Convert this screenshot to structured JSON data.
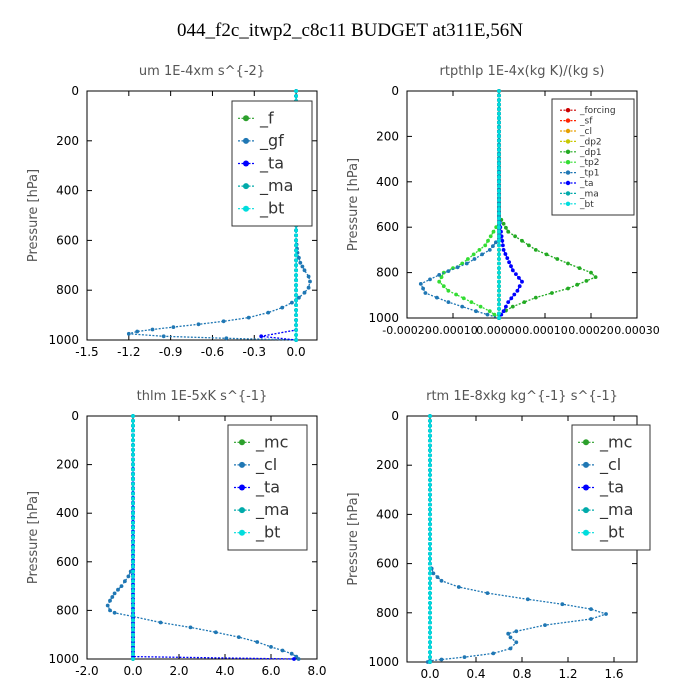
{
  "title": "044_f2c_itwp2_c8c11  BUDGET at311E,56N",
  "chart_data": [
    {
      "type": "line",
      "title": "um   1E-4xm s^{-2}",
      "ylabel": "Pressure [hPa]",
      "xlim": [
        -1.5,
        0.15
      ],
      "ylim": [
        1000,
        0
      ],
      "xticks": [
        "-1.5",
        "-1.2",
        "-0.9",
        "-0.6",
        "-0.3",
        "0.0"
      ],
      "xtick_values": [
        -1.5,
        -1.2,
        -0.9,
        -0.6,
        -0.3,
        0.0
      ],
      "yticks": [
        "0",
        "200",
        "400",
        "600",
        "800",
        "1000"
      ],
      "ytick_values": [
        0,
        200,
        400,
        600,
        800,
        1000
      ],
      "legend": [
        "_f",
        "_gf",
        "_ta",
        "_ma",
        "_bt"
      ],
      "legend_position": "top-right",
      "legend_small": false,
      "series": [
        {
          "name": "_f",
          "color": "#2ca02c",
          "x": [
            0.0,
            0.0
          ],
          "y": [
            0,
            1000
          ]
        },
        {
          "name": "_gf",
          "color": "#1f77b4",
          "x": [
            0.0,
            0.0,
            0.01,
            0.03,
            0.06,
            0.09,
            0.1,
            0.09,
            0.06,
            0.02,
            -0.03,
            -0.1,
            -0.2,
            -0.34,
            -0.52,
            -0.7,
            -0.88,
            -1.03,
            -1.14,
            -1.2,
            -0.95,
            -0.5,
            0.0
          ],
          "y": [
            0,
            600,
            650,
            690,
            720,
            745,
            765,
            790,
            810,
            830,
            850,
            870,
            890,
            910,
            925,
            937,
            948,
            958,
            966,
            975,
            985,
            993,
            1000
          ]
        },
        {
          "name": "_ta",
          "color": "#0000ff",
          "x": [
            0.0,
            0.0,
            -0.25,
            0.0
          ],
          "y": [
            0,
            960,
            985,
            1000
          ]
        },
        {
          "name": "_ma",
          "color": "#00aaaa",
          "x": [
            0.0,
            0.0
          ],
          "y": [
            0,
            1000
          ]
        },
        {
          "name": "_bt",
          "color": "#00dddd",
          "x": [
            0.0,
            0.0
          ],
          "y": [
            0,
            1000
          ]
        }
      ]
    },
    {
      "type": "line",
      "title": "rtpthlp   1E-4x(kg K)/(kg s)",
      "ylabel": "Pressure [hPa]",
      "xlim": [
        -0.0002,
        0.0003
      ],
      "ylim": [
        1000,
        0
      ],
      "xticks": [
        "-0.00020",
        "-0.00010",
        "0.00000",
        "0.00010",
        "0.00020",
        "0.00030"
      ],
      "xtick_values": [
        -0.0002,
        -0.0001,
        0.0,
        0.0001,
        0.0002,
        0.0003
      ],
      "yticks": [
        "0",
        "200",
        "400",
        "600",
        "800",
        "1000"
      ],
      "ytick_values": [
        0,
        200,
        400,
        600,
        800,
        1000
      ],
      "legend": [
        "_forcing",
        "_sf",
        "_cl",
        "_dp2",
        "_dp1",
        "_tp2",
        "_tp1",
        "_ta",
        "_ma",
        "_bt"
      ],
      "legend_position": "top-right",
      "legend_small": true,
      "series": [
        {
          "name": "_forcing",
          "color": "#cc0000",
          "x": [
            0.0,
            0.0
          ],
          "y": [
            0,
            1000
          ]
        },
        {
          "name": "_sf",
          "color": "#ff2200",
          "x": [
            0.0,
            0.0
          ],
          "y": [
            0,
            1000
          ]
        },
        {
          "name": "_cl",
          "color": "#e6a000",
          "x": [
            0.0,
            0.0
          ],
          "y": [
            0,
            1000
          ]
        },
        {
          "name": "_dp2",
          "color": "#c8c800",
          "x": [
            0.0,
            0.0
          ],
          "y": [
            0,
            1000
          ]
        },
        {
          "name": "_dp1",
          "color": "#22aa22",
          "x": [
            0.0,
            0.0,
            2e-05,
            8e-05,
            0.00015,
            0.0002,
            0.00021,
            0.00015,
            8e-05,
            3e-05,
            0.0,
            0.0
          ],
          "y": [
            0,
            550,
            620,
            700,
            760,
            800,
            820,
            870,
            910,
            950,
            985,
            1000
          ]
        },
        {
          "name": "_tp2",
          "color": "#33dd33",
          "x": [
            0.0,
            0.0,
            -3e-05,
            -8e-05,
            -0.00012,
            -0.00013,
            -0.00011,
            -6e-05,
            -2e-05,
            0.0
          ],
          "y": [
            0,
            580,
            680,
            760,
            800,
            840,
            880,
            930,
            970,
            1000
          ]
        },
        {
          "name": "_tp1",
          "color": "#1f77b4",
          "x": [
            0.0,
            0.0,
            -2e-05,
            -7e-05,
            -0.00013,
            -0.00017,
            -0.00016,
            -0.00011,
            -5e-05,
            0.0
          ],
          "y": [
            0,
            650,
            700,
            760,
            810,
            850,
            890,
            930,
            970,
            1000
          ]
        },
        {
          "name": "_ta",
          "color": "#0000ff",
          "x": [
            0.0,
            0.0,
            1e-05,
            3e-05,
            5e-05,
            4e-05,
            2e-05,
            1e-05,
            0.0
          ],
          "y": [
            0,
            560,
            700,
            790,
            840,
            880,
            930,
            970,
            1000
          ]
        },
        {
          "name": "_ma",
          "color": "#00aaaa",
          "x": [
            0.0,
            0.0
          ],
          "y": [
            0,
            1000
          ]
        },
        {
          "name": "_bt",
          "color": "#00dddd",
          "x": [
            0.0,
            0.0
          ],
          "y": [
            0,
            1000
          ]
        }
      ]
    },
    {
      "type": "line",
      "title": "thlm   1E-5xK s^{-1}",
      "ylabel": "Pressure [hPa]",
      "xlim": [
        -2.0,
        8.0
      ],
      "ylim": [
        1000,
        0
      ],
      "xticks": [
        "-2.0",
        "0.0",
        "2.0",
        "4.0",
        "6.0",
        "8.0"
      ],
      "xtick_values": [
        -2.0,
        0.0,
        2.0,
        4.0,
        6.0,
        8.0
      ],
      "yticks": [
        "0",
        "200",
        "400",
        "600",
        "800",
        "1000"
      ],
      "ytick_values": [
        0,
        200,
        400,
        600,
        800,
        1000
      ],
      "legend": [
        "_mc",
        "_cl",
        "_ta",
        "_ma",
        "_bt"
      ],
      "legend_position": "top-right",
      "legend_small": false,
      "series": [
        {
          "name": "_mc",
          "color": "#2ca02c",
          "x": [
            0.0,
            0.0
          ],
          "y": [
            0,
            1000
          ]
        },
        {
          "name": "_cl",
          "color": "#1f77b4",
          "x": [
            0.0,
            0.0,
            -0.2,
            -0.5,
            -0.8,
            -1.0,
            -1.1,
            -1.0,
            -0.8,
            0.0,
            1.2,
            2.5,
            3.6,
            4.6,
            5.4,
            6.0,
            6.5,
            6.9,
            7.1,
            7.2
          ],
          "y": [
            0,
            620,
            660,
            700,
            730,
            760,
            780,
            800,
            810,
            825,
            850,
            870,
            890,
            910,
            930,
            950,
            965,
            978,
            990,
            1000
          ]
        },
        {
          "name": "_ta",
          "color": "#0000ff",
          "x": [
            0.0,
            0.0,
            7.0
          ],
          "y": [
            0,
            990,
            1000
          ]
        },
        {
          "name": "_ma",
          "color": "#00aaaa",
          "x": [
            0.0,
            0.0
          ],
          "y": [
            0,
            1000
          ]
        },
        {
          "name": "_bt",
          "color": "#00dddd",
          "x": [
            0.0,
            0.0
          ],
          "y": [
            0,
            1000
          ]
        }
      ]
    },
    {
      "type": "line",
      "title": "rtm   1E-8xkg kg^{-1} s^{-1}",
      "ylabel": "Pressure [hPa]",
      "xlim": [
        -0.2,
        1.8
      ],
      "ylim": [
        1000,
        0
      ],
      "xticks": [
        "0.0",
        "0.4",
        "0.8",
        "1.2",
        "1.6"
      ],
      "xtick_values": [
        0.0,
        0.4,
        0.8,
        1.2,
        1.6
      ],
      "yticks": [
        "0",
        "200",
        "400",
        "600",
        "800",
        "1000"
      ],
      "ytick_values": [
        0,
        200,
        400,
        600,
        800,
        1000
      ],
      "legend": [
        "_mc",
        "_cl",
        "_ta",
        "_ma",
        "_bt"
      ],
      "legend_position": "top-right",
      "legend_small": false,
      "series": [
        {
          "name": "_mc",
          "color": "#2ca02c",
          "x": [
            0.0,
            0.0
          ],
          "y": [
            0,
            1000
          ]
        },
        {
          "name": "_cl",
          "color": "#1f77b4",
          "x": [
            0.0,
            0.0,
            0.03,
            0.1,
            0.25,
            0.5,
            0.85,
            1.15,
            1.4,
            1.53,
            1.4,
            1.0,
            0.75,
            0.68,
            0.7,
            0.75,
            0.7,
            0.55,
            0.3,
            0.1,
            0.0,
            -0.02
          ],
          "y": [
            0,
            600,
            640,
            670,
            695,
            720,
            745,
            765,
            785,
            805,
            825,
            850,
            875,
            885,
            900,
            920,
            945,
            965,
            980,
            990,
            995,
            1000
          ]
        },
        {
          "name": "_ta",
          "color": "#0000ff",
          "x": [
            0.0,
            0.0
          ],
          "y": [
            0,
            1000
          ]
        },
        {
          "name": "_ma",
          "color": "#00aaaa",
          "x": [
            0.0,
            0.0
          ],
          "y": [
            0,
            1000
          ]
        },
        {
          "name": "_bt",
          "color": "#00dddd",
          "x": [
            0.0,
            0.0
          ],
          "y": [
            0,
            1000
          ]
        }
      ]
    }
  ]
}
